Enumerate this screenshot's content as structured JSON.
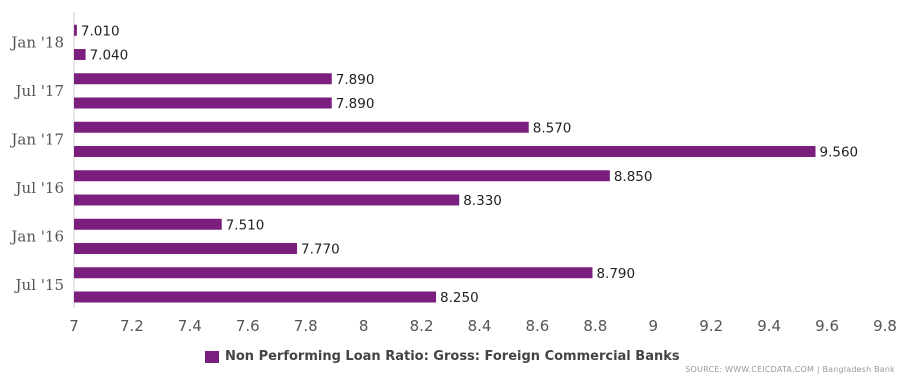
{
  "chart_data": {
    "type": "bar",
    "orientation": "horizontal",
    "bars": [
      {
        "value": 8.25,
        "label": "8.250"
      },
      {
        "value": 8.79,
        "label": "8.790"
      },
      {
        "value": 7.77,
        "label": "7.770"
      },
      {
        "value": 7.51,
        "label": "7.510"
      },
      {
        "value": 8.33,
        "label": "8.330"
      },
      {
        "value": 8.85,
        "label": "8.850"
      },
      {
        "value": 9.56,
        "label": "9.560"
      },
      {
        "value": 8.57,
        "label": "8.570"
      },
      {
        "value": 7.89,
        "label": "7.890"
      },
      {
        "value": 7.89,
        "label": "7.890"
      },
      {
        "value": 7.04,
        "label": "7.040"
      },
      {
        "value": 7.01,
        "label": "7.010"
      }
    ],
    "category_labels": [
      "Jul '15",
      "Jan '16",
      "Jul '16",
      "Jan '17",
      "Jul '17",
      "Jan '18"
    ],
    "xlim": [
      7,
      9.8
    ],
    "x_ticks": [
      "7",
      "7.2",
      "7.4",
      "7.6",
      "7.8",
      "8",
      "8.2",
      "8.4",
      "8.6",
      "8.8",
      "9",
      "9.2",
      "9.4",
      "9.6",
      "9.8"
    ],
    "x_tick_values": [
      7,
      7.2,
      7.4,
      7.6,
      7.8,
      8,
      8.2,
      8.4,
      8.6,
      8.8,
      9,
      9.2,
      9.4,
      9.6,
      9.8
    ],
    "grid": false,
    "legend_position": "bottom",
    "series": [
      {
        "name": "Non Performing Loan Ratio: Gross: Foreign Commercial Banks",
        "color": "#7b1f7e"
      }
    ]
  },
  "source_text": "SOURCE: WWW.CEICDATA.COM | Bangladesh Bank"
}
